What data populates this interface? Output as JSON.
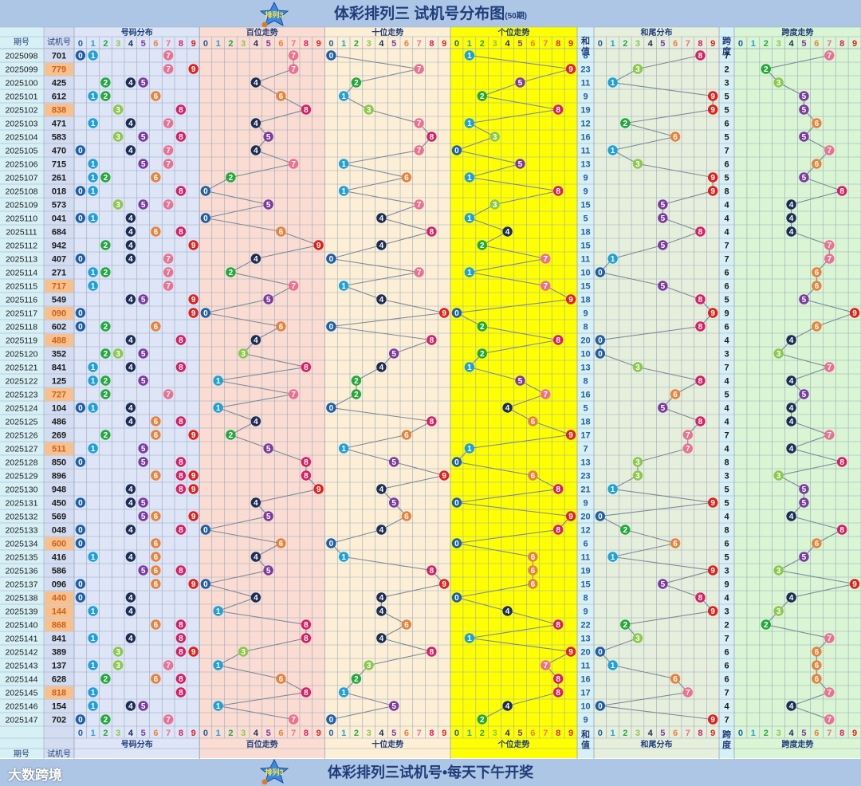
{
  "title": {
    "main": "体彩排列三 试机号分布图",
    "sub": "(50期)",
    "logo_text": "排列3"
  },
  "footer": {
    "text": "体彩排列三试机号•每天下午开奖",
    "brand": "大数跨境"
  },
  "headers": {
    "period": "期号",
    "number": "试机号",
    "dist": "号码分布",
    "hundreds": "百位走势",
    "tens": "十位走势",
    "units": "个位走势",
    "sum": [
      "和",
      "值"
    ],
    "sum_tail": "和尾分布",
    "span": [
      "跨",
      "度"
    ],
    "span_trend": "跨度走势"
  },
  "digits": [
    "0",
    "1",
    "2",
    "3",
    "4",
    "5",
    "6",
    "7",
    "8",
    "9"
  ],
  "colors": {
    "ball": [
      "#1e5fa8",
      "#1ea0d8",
      "#22a83c",
      "#8cc84a",
      "#1c2c54",
      "#7b3aa0",
      "#e8823a",
      "#ee7090",
      "#d81e64",
      "#e0201c"
    ],
    "accent": "#1f3d7a"
  },
  "chart_data": {
    "type": "table",
    "columns": [
      "期号",
      "试机号",
      "和值",
      "跨度"
    ],
    "rows": [
      [
        "2025098",
        "701",
        "8",
        "7"
      ],
      [
        "2025099",
        "779",
        "23",
        "2"
      ],
      [
        "2025100",
        "425",
        "11",
        "3"
      ],
      [
        "2025101",
        "612",
        "9",
        "5"
      ],
      [
        "2025102",
        "838",
        "19",
        "5"
      ],
      [
        "2025103",
        "471",
        "12",
        "6"
      ],
      [
        "2025104",
        "583",
        "16",
        "5"
      ],
      [
        "2025105",
        "470",
        "11",
        "7"
      ],
      [
        "2025106",
        "715",
        "13",
        "6"
      ],
      [
        "2025107",
        "261",
        "9",
        "5"
      ],
      [
        "2025108",
        "018",
        "9",
        "8"
      ],
      [
        "2025109",
        "573",
        "15",
        "4"
      ],
      [
        "2025110",
        "041",
        "5",
        "4"
      ],
      [
        "2025111",
        "684",
        "18",
        "4"
      ],
      [
        "2025112",
        "942",
        "15",
        "7"
      ],
      [
        "2025113",
        "407",
        "11",
        "7"
      ],
      [
        "2025114",
        "271",
        "10",
        "6"
      ],
      [
        "2025115",
        "717",
        "15",
        "6"
      ],
      [
        "2025116",
        "549",
        "18",
        "5"
      ],
      [
        "2025117",
        "090",
        "9",
        "9"
      ],
      [
        "2025118",
        "602",
        "8",
        "6"
      ],
      [
        "2025119",
        "488",
        "20",
        "4"
      ],
      [
        "2025120",
        "352",
        "10",
        "3"
      ],
      [
        "2025121",
        "841",
        "13",
        "7"
      ],
      [
        "2025122",
        "125",
        "8",
        "4"
      ],
      [
        "2025123",
        "727",
        "16",
        "5"
      ],
      [
        "2025124",
        "104",
        "5",
        "4"
      ],
      [
        "2025125",
        "486",
        "18",
        "4"
      ],
      [
        "2025126",
        "269",
        "17",
        "7"
      ],
      [
        "2025127",
        "511",
        "7",
        "4"
      ],
      [
        "2025128",
        "850",
        "13",
        "8"
      ],
      [
        "2025129",
        "896",
        "23",
        "3"
      ],
      [
        "2025130",
        "948",
        "21",
        "5"
      ],
      [
        "2025131",
        "450",
        "9",
        "5"
      ],
      [
        "2025132",
        "569",
        "20",
        "4"
      ],
      [
        "2025133",
        "048",
        "12",
        "8"
      ],
      [
        "2025134",
        "600",
        "6",
        "6"
      ],
      [
        "2025135",
        "416",
        "11",
        "5"
      ],
      [
        "2025136",
        "586",
        "19",
        "3"
      ],
      [
        "2025137",
        "096",
        "15",
        "9"
      ],
      [
        "2025138",
        "440",
        "8",
        "4"
      ],
      [
        "2025139",
        "144",
        "9",
        "3"
      ],
      [
        "2025140",
        "868",
        "22",
        "2"
      ],
      [
        "2025141",
        "841",
        "13",
        "7"
      ],
      [
        "2025142",
        "389",
        "20",
        "6"
      ],
      [
        "2025143",
        "137",
        "11",
        "6"
      ],
      [
        "2025144",
        "628",
        "16",
        "6"
      ],
      [
        "2025145",
        "818",
        "17",
        "7"
      ],
      [
        "2025146",
        "154",
        "10",
        "4"
      ],
      [
        "2025147",
        "702",
        "9",
        "7"
      ]
    ]
  }
}
